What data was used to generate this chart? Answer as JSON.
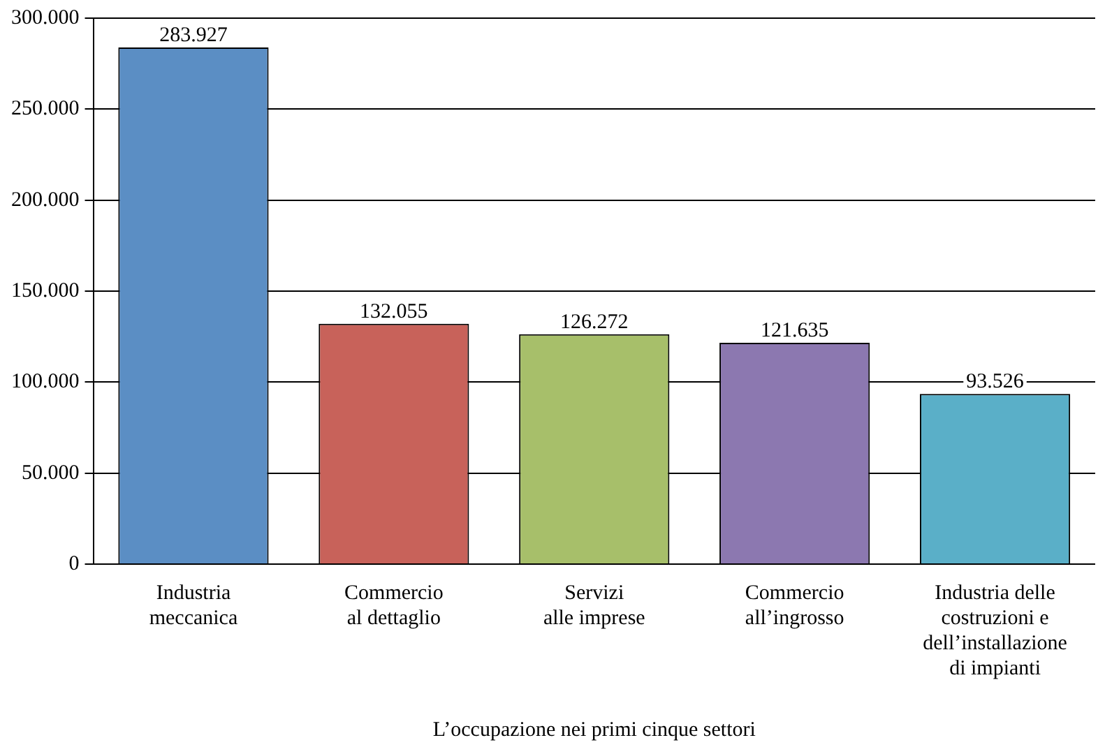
{
  "chart_data": {
    "type": "bar",
    "xlabel": "L’occupazione nei primi cinque settori",
    "categories": [
      "Industria\nmeccanica",
      "Commercio\nal dettaglio",
      "Servizi\nalle imprese",
      "Commercio\nall’ingrosso",
      "Industria delle\ncostruzioni e\ndell’installazione\ndi impianti"
    ],
    "values": [
      283927,
      132055,
      126272,
      121635,
      93526
    ],
    "colors": [
      "#5b8ec4",
      "#c8625a",
      "#a7bf6a",
      "#8c78b0",
      "#5aafc8"
    ],
    "value_labels": [
      "283.927",
      "132.055",
      "126.272",
      "121.635",
      "93.526"
    ],
    "ylim": [
      0,
      300000
    ],
    "yticks": [
      {
        "value": 0,
        "label": "0"
      },
      {
        "value": 50000,
        "label": "50.000"
      },
      {
        "value": 100000,
        "label": "100.000"
      },
      {
        "value": 150000,
        "label": "150.000"
      },
      {
        "value": 200000,
        "label": "200.000"
      },
      {
        "value": 250000,
        "label": "250.000"
      },
      {
        "value": 300000,
        "label": "300.000"
      }
    ],
    "grid": "y",
    "legend": false
  }
}
